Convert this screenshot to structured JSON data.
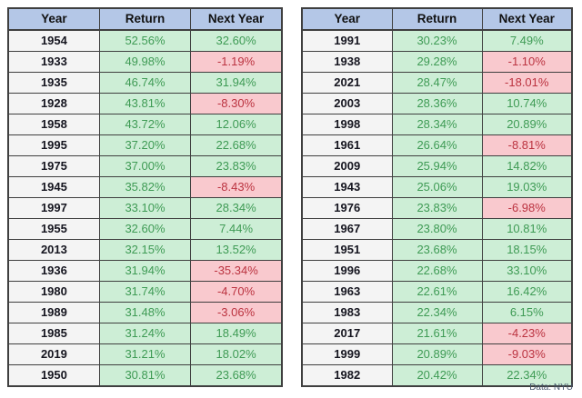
{
  "source_note": "Data: NYU",
  "colors": {
    "header_bg": "#b4c7e7",
    "year_bg": "#f4f4f4",
    "positive_bg": "#cdeed6",
    "positive_text": "#3f9b55",
    "negative_bg": "#f9c9ce",
    "negative_text": "#bb3340",
    "border": "#3f3f3f"
  },
  "chart_data": [
    {
      "type": "table",
      "columns": [
        "Year",
        "Return",
        "Next Year"
      ],
      "rows": [
        [
          "1954",
          "52.56%",
          "32.60%"
        ],
        [
          "1933",
          "49.98%",
          "-1.19%"
        ],
        [
          "1935",
          "46.74%",
          "31.94%"
        ],
        [
          "1928",
          "43.81%",
          "-8.30%"
        ],
        [
          "1958",
          "43.72%",
          "12.06%"
        ],
        [
          "1995",
          "37.20%",
          "22.68%"
        ],
        [
          "1975",
          "37.00%",
          "23.83%"
        ],
        [
          "1945",
          "35.82%",
          "-8.43%"
        ],
        [
          "1997",
          "33.10%",
          "28.34%"
        ],
        [
          "1955",
          "32.60%",
          "7.44%"
        ],
        [
          "2013",
          "32.15%",
          "13.52%"
        ],
        [
          "1936",
          "31.94%",
          "-35.34%"
        ],
        [
          "1980",
          "31.74%",
          "-4.70%"
        ],
        [
          "1989",
          "31.48%",
          "-3.06%"
        ],
        [
          "1985",
          "31.24%",
          "18.49%"
        ],
        [
          "2019",
          "31.21%",
          "18.02%"
        ],
        [
          "1950",
          "30.81%",
          "23.68%"
        ]
      ]
    },
    {
      "type": "table",
      "columns": [
        "Year",
        "Return",
        "Next Year"
      ],
      "rows": [
        [
          "1991",
          "30.23%",
          "7.49%"
        ],
        [
          "1938",
          "29.28%",
          "-1.10%"
        ],
        [
          "2021",
          "28.47%",
          "-18.01%"
        ],
        [
          "2003",
          "28.36%",
          "10.74%"
        ],
        [
          "1998",
          "28.34%",
          "20.89%"
        ],
        [
          "1961",
          "26.64%",
          "-8.81%"
        ],
        [
          "2009",
          "25.94%",
          "14.82%"
        ],
        [
          "1943",
          "25.06%",
          "19.03%"
        ],
        [
          "1976",
          "23.83%",
          "-6.98%"
        ],
        [
          "1967",
          "23.80%",
          "10.81%"
        ],
        [
          "1951",
          "23.68%",
          "18.15%"
        ],
        [
          "1996",
          "22.68%",
          "33.10%"
        ],
        [
          "1963",
          "22.61%",
          "16.42%"
        ],
        [
          "1983",
          "22.34%",
          "6.15%"
        ],
        [
          "2017",
          "21.61%",
          "-4.23%"
        ],
        [
          "1999",
          "20.89%",
          "-9.03%"
        ],
        [
          "1982",
          "20.42%",
          "22.34%"
        ]
      ]
    }
  ]
}
